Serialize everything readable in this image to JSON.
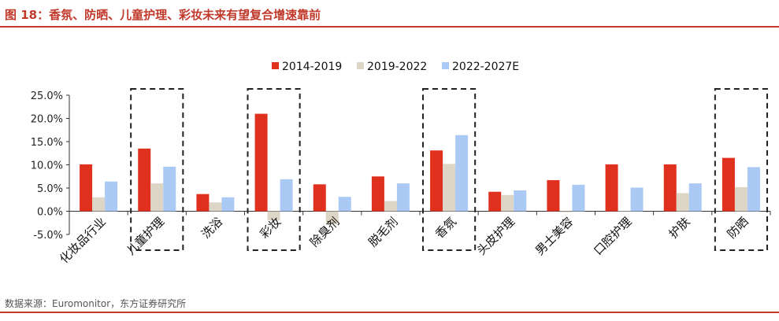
{
  "title": "图 18：香氛、防晒、儿童护理、彩妆未来有望复合增速靠前",
  "source": "数据来源：Euromonitor，东方证券研究所",
  "colors": {
    "accent": "#c0392b",
    "series": [
      "#e0301e",
      "#ddd5c6",
      "#aac9f5"
    ]
  },
  "chart_data": {
    "type": "bar",
    "categories": [
      "化妆品行业",
      "儿童护理",
      "洗浴",
      "彩妆",
      "除臭剂",
      "脱毛剂",
      "香氛",
      "头皮护理",
      "男士美容",
      "口腔护理",
      "护肤",
      "防晒"
    ],
    "series": [
      {
        "name": "2014-2019",
        "values": [
          10.1,
          13.5,
          3.7,
          21.0,
          5.8,
          7.5,
          13.1,
          4.2,
          6.7,
          10.1,
          10.1,
          11.5
        ]
      },
      {
        "name": "2019-2022",
        "values": [
          3.0,
          6.0,
          1.9,
          -2.0,
          -2.8,
          2.2,
          10.2,
          3.5,
          -0.2,
          0.0,
          3.9,
          5.2
        ]
      },
      {
        "name": "2022-2027E",
        "values": [
          6.4,
          9.6,
          3.0,
          6.9,
          3.1,
          6.0,
          16.4,
          4.5,
          5.7,
          5.1,
          6.0,
          9.5
        ]
      }
    ],
    "yticks": [
      "25.0%",
      "20.0%",
      "15.0%",
      "10.0%",
      "5.0%",
      "0.0%",
      "-5.0%"
    ],
    "ylim": [
      -5,
      25
    ],
    "highlighted_categories": [
      "儿童护理",
      "彩妆",
      "香氛",
      "防晒"
    ],
    "legend_position": "top-center"
  }
}
